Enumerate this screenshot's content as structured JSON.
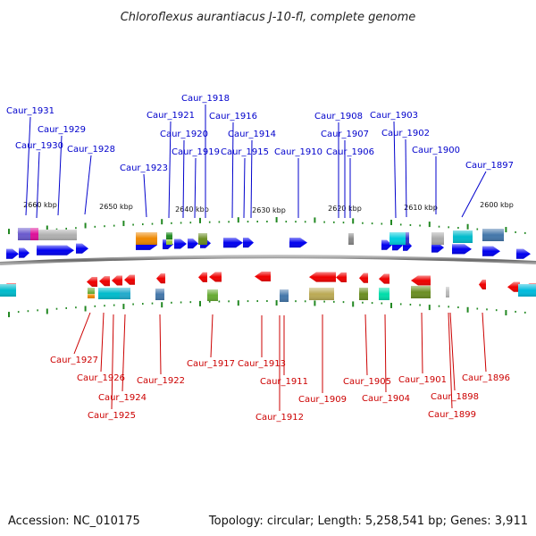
{
  "title": "Chloroflexus aurantiacus J-10-fl, complete genome",
  "footer": {
    "accession": "Accession: NC_010175",
    "summary": "Topology: circular; Length: 5,258,541 bp; Genes: 3,911"
  },
  "scale_labels": [
    "2660 kbp",
    "2650 kbp",
    "2640 kbp",
    "2630 kbp",
    "2620 kbp",
    "2610 kbp",
    "2600 kbp"
  ],
  "forward_genes": [
    "Caur_1931",
    "Caur_1930",
    "Caur_1929",
    "Caur_1928",
    "Caur_1923",
    "Caur_1921",
    "Caur_1918",
    "Caur_1920",
    "Caur_1919",
    "Caur_1916",
    "Caur_1915",
    "Caur_1914",
    "Caur_1910",
    "Caur_1908",
    "Caur_1907",
    "Caur_1906",
    "Caur_1903",
    "Caur_1902",
    "Caur_1900",
    "Caur_1897"
  ],
  "reverse_genes": [
    "Caur_1927",
    "Caur_1926",
    "Caur_1925",
    "Caur_1924",
    "Caur_1922",
    "Caur_1917",
    "Caur_1913",
    "Caur_1912",
    "Caur_1911",
    "Caur_1909",
    "Caur_1905",
    "Caur_1904",
    "Caur_1901",
    "Caur_1899",
    "Caur_1898",
    "Caur_1896"
  ],
  "colors": {
    "forward": "#0000ee",
    "reverse": "#ee0000",
    "forward_label": "#0000cc",
    "reverse_label": "#cc0000",
    "backbone": "#888888",
    "tick": "#228822"
  }
}
